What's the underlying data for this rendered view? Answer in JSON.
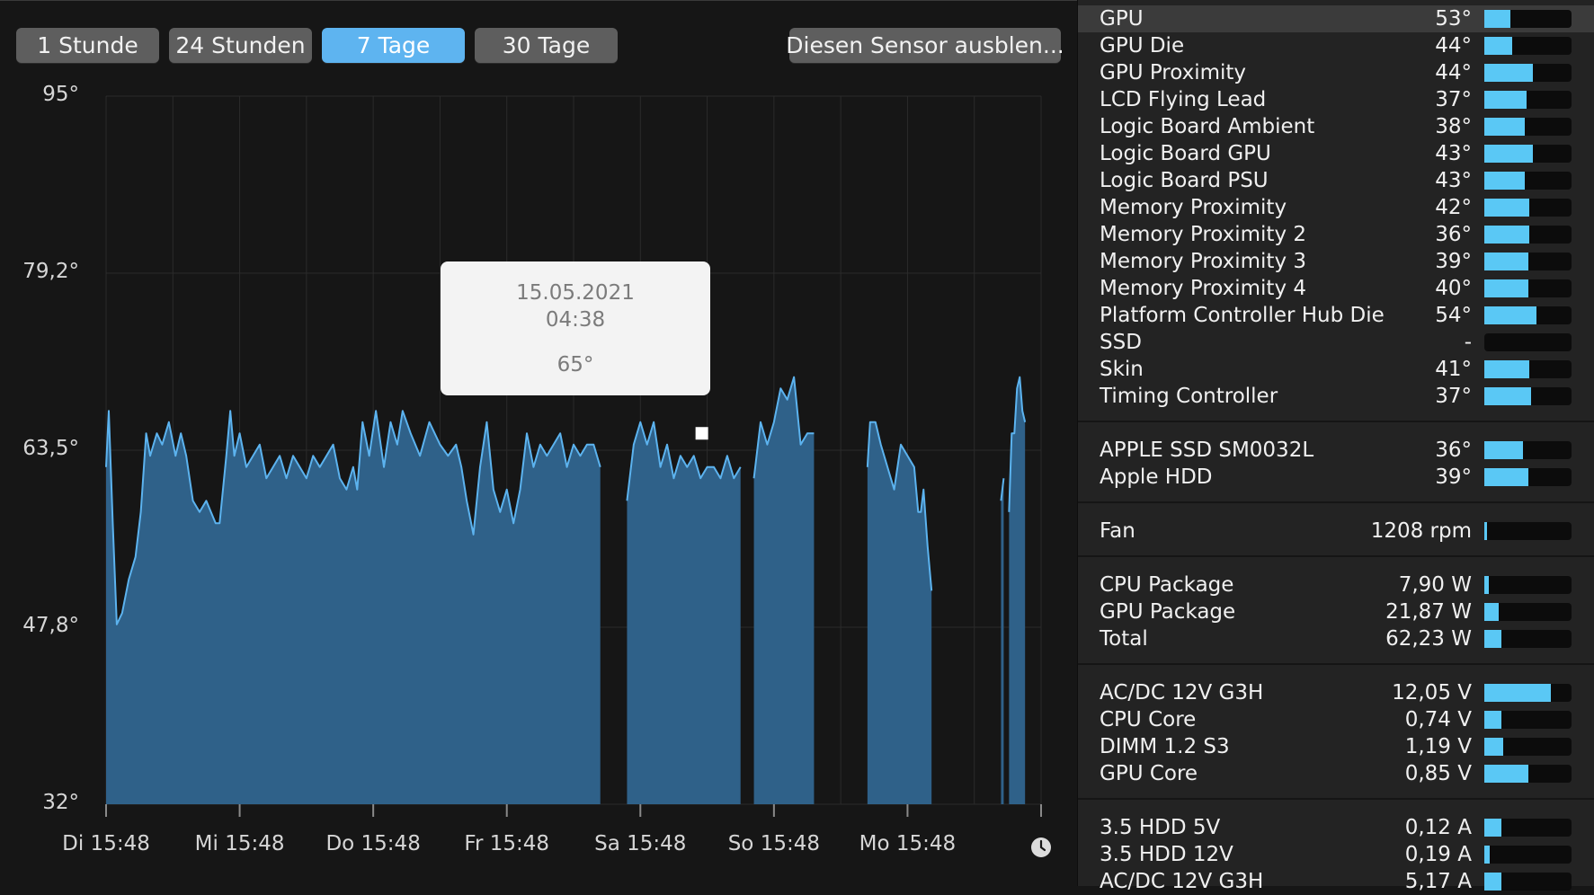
{
  "range_buttons": [
    {
      "label": "1 Stunde",
      "active": false
    },
    {
      "label": "24 Stunden",
      "active": false
    },
    {
      "label": "7 Tage",
      "active": true
    },
    {
      "label": "30 Tage",
      "active": false
    }
  ],
  "hide_sensor_label": "Diesen Sensor ausblen...",
  "tooltip": {
    "date": "15.05.2021",
    "time": "04:38",
    "value": "65°"
  },
  "colors": {
    "accent": "#5eb4f0",
    "area_fill": "#2f6189",
    "line": "#5cb3ef",
    "bar_fill": "#5ac8f5"
  },
  "icons": {
    "clock": "clock-icon"
  },
  "chart_data": {
    "type": "area",
    "y_ticks": [
      "95°",
      "79,2°",
      "63,5°",
      "47,8°",
      "32°"
    ],
    "ylim": [
      32,
      95
    ],
    "x_ticks": [
      "Di 15:48",
      "Mi 15:48",
      "Do 15:48",
      "Fr 15:48",
      "Sa 15:48",
      "So 15:48",
      "Mo 15:48"
    ],
    "xlim": [
      0,
      7
    ],
    "grid": true,
    "segments": [
      [
        [
          0.0,
          62
        ],
        [
          0.02,
          67
        ],
        [
          0.05,
          57
        ],
        [
          0.08,
          48
        ],
        [
          0.12,
          49
        ],
        [
          0.17,
          52
        ],
        [
          0.22,
          54
        ],
        [
          0.26,
          58
        ],
        [
          0.3,
          65
        ],
        [
          0.33,
          63
        ],
        [
          0.38,
          65
        ],
        [
          0.42,
          64
        ],
        [
          0.47,
          66
        ],
        [
          0.52,
          63
        ],
        [
          0.56,
          65
        ],
        [
          0.6,
          63
        ],
        [
          0.65,
          59
        ],
        [
          0.7,
          58
        ],
        [
          0.75,
          59
        ],
        [
          0.82,
          57
        ],
        [
          0.85,
          57
        ],
        [
          0.9,
          63
        ],
        [
          0.93,
          67
        ],
        [
          0.96,
          63
        ],
        [
          1.0,
          65
        ],
        [
          1.05,
          62
        ],
        [
          1.1,
          63
        ],
        [
          1.15,
          64
        ],
        [
          1.2,
          61
        ],
        [
          1.25,
          62
        ],
        [
          1.3,
          63
        ],
        [
          1.35,
          61
        ],
        [
          1.4,
          63
        ],
        [
          1.45,
          62
        ],
        [
          1.5,
          61
        ],
        [
          1.55,
          63
        ],
        [
          1.6,
          62
        ],
        [
          1.65,
          63
        ],
        [
          1.7,
          64
        ],
        [
          1.75,
          61
        ],
        [
          1.8,
          60
        ],
        [
          1.85,
          62
        ],
        [
          1.88,
          60
        ],
        [
          1.92,
          66
        ],
        [
          1.97,
          63
        ],
        [
          2.02,
          67
        ],
        [
          2.08,
          62
        ],
        [
          2.13,
          66
        ],
        [
          2.18,
          64
        ],
        [
          2.22,
          67
        ],
        [
          2.28,
          65
        ],
        [
          2.35,
          63
        ],
        [
          2.42,
          66
        ],
        [
          2.5,
          64
        ],
        [
          2.56,
          63
        ],
        [
          2.62,
          64
        ],
        [
          2.66,
          62
        ],
        [
          2.7,
          59
        ],
        [
          2.75,
          56
        ],
        [
          2.8,
          62
        ],
        [
          2.85,
          66
        ],
        [
          2.9,
          60
        ],
        [
          2.95,
          58
        ],
        [
          3.0,
          60
        ],
        [
          3.05,
          57
        ],
        [
          3.1,
          60
        ],
        [
          3.15,
          65
        ],
        [
          3.2,
          62
        ],
        [
          3.25,
          64
        ],
        [
          3.3,
          63
        ],
        [
          3.35,
          64
        ],
        [
          3.4,
          65
        ],
        [
          3.45,
          62
        ],
        [
          3.5,
          64
        ],
        [
          3.55,
          63
        ],
        [
          3.6,
          64
        ],
        [
          3.65,
          64
        ],
        [
          3.7,
          62
        ]
      ],
      [
        [
          3.9,
          59
        ],
        [
          3.95,
          64
        ],
        [
          4.0,
          66
        ],
        [
          4.05,
          64
        ],
        [
          4.1,
          66
        ],
        [
          4.15,
          62
        ],
        [
          4.2,
          64
        ],
        [
          4.25,
          61
        ],
        [
          4.3,
          63
        ],
        [
          4.35,
          62
        ],
        [
          4.4,
          63
        ],
        [
          4.45,
          61
        ],
        [
          4.5,
          62
        ],
        [
          4.55,
          62
        ],
        [
          4.6,
          61
        ],
        [
          4.65,
          63
        ],
        [
          4.7,
          61
        ],
        [
          4.75,
          62
        ]
      ],
      [
        [
          4.85,
          61
        ],
        [
          4.9,
          66
        ],
        [
          4.95,
          64
        ],
        [
          5.0,
          66
        ],
        [
          5.05,
          69
        ],
        [
          5.1,
          68
        ],
        [
          5.15,
          70
        ],
        [
          5.2,
          64
        ],
        [
          5.25,
          65
        ],
        [
          5.3,
          65
        ]
      ],
      [
        [
          5.7,
          62
        ],
        [
          5.72,
          66
        ],
        [
          5.76,
          66
        ],
        [
          5.8,
          64
        ],
        [
          5.85,
          62
        ],
        [
          5.9,
          60
        ],
        [
          5.95,
          64
        ],
        [
          6.0,
          63
        ],
        [
          6.05,
          62
        ],
        [
          6.08,
          58
        ],
        [
          6.1,
          58
        ],
        [
          6.12,
          60
        ],
        [
          6.15,
          55
        ],
        [
          6.18,
          51
        ]
      ],
      [
        [
          6.7,
          59
        ],
        [
          6.72,
          61
        ]
      ],
      [
        [
          6.76,
          58
        ],
        [
          6.78,
          65
        ],
        [
          6.8,
          65
        ],
        [
          6.82,
          69
        ],
        [
          6.84,
          70
        ],
        [
          6.86,
          67
        ],
        [
          6.88,
          66
        ]
      ]
    ]
  },
  "sensor_groups": [
    [
      {
        "name": "GPU",
        "value": "53°",
        "fill": 0.3,
        "selected": true
      },
      {
        "name": "GPU Die",
        "value": "44°",
        "fill": 0.32
      },
      {
        "name": "GPU Proximity",
        "value": "44°",
        "fill": 0.56
      },
      {
        "name": "LCD Flying Lead",
        "value": "37°",
        "fill": 0.48
      },
      {
        "name": "Logic Board Ambient",
        "value": "38°",
        "fill": 0.46
      },
      {
        "name": "Logic Board GPU",
        "value": "43°",
        "fill": 0.56
      },
      {
        "name": "Logic Board PSU",
        "value": "43°",
        "fill": 0.46
      },
      {
        "name": "Memory Proximity",
        "value": "42°",
        "fill": 0.52
      },
      {
        "name": "Memory Proximity 2",
        "value": "36°",
        "fill": 0.52
      },
      {
        "name": "Memory Proximity 3",
        "value": "39°",
        "fill": 0.5
      },
      {
        "name": "Memory Proximity 4",
        "value": "40°",
        "fill": 0.5
      },
      {
        "name": "Platform Controller Hub Die",
        "value": "54°",
        "fill": 0.6
      },
      {
        "name": "SSD",
        "value": "-",
        "fill": 0.0
      },
      {
        "name": "Skin",
        "value": "41°",
        "fill": 0.52
      },
      {
        "name": "Timing Controller",
        "value": "37°",
        "fill": 0.54
      }
    ],
    [
      {
        "name": "APPLE SSD SM0032L",
        "value": "36°",
        "fill": 0.44
      },
      {
        "name": "Apple HDD",
        "value": "39°",
        "fill": 0.5
      }
    ],
    [
      {
        "name": "Fan",
        "value": "1208 rpm",
        "fill": 0.02
      }
    ],
    [
      {
        "name": "CPU Package",
        "value": "7,90 W",
        "fill": 0.05
      },
      {
        "name": "GPU Package",
        "value": "21,87 W",
        "fill": 0.16
      },
      {
        "name": "Total",
        "value": "62,23 W",
        "fill": 0.2
      }
    ],
    [
      {
        "name": "AC/DC 12V G3H",
        "value": "12,05 V",
        "fill": 0.76
      },
      {
        "name": "CPU Core",
        "value": "0,74 V",
        "fill": 0.2
      },
      {
        "name": "DIMM 1.2 S3",
        "value": "1,19 V",
        "fill": 0.22
      },
      {
        "name": "GPU Core",
        "value": "0,85 V",
        "fill": 0.5
      }
    ],
    [
      {
        "name": "3.5 HDD 5V",
        "value": "0,12 A",
        "fill": 0.2
      },
      {
        "name": "3.5 HDD 12V",
        "value": "0,19 A",
        "fill": 0.06
      },
      {
        "name": "AC/DC 12V G3H",
        "value": "5,17 A",
        "fill": 0.2
      }
    ]
  ]
}
